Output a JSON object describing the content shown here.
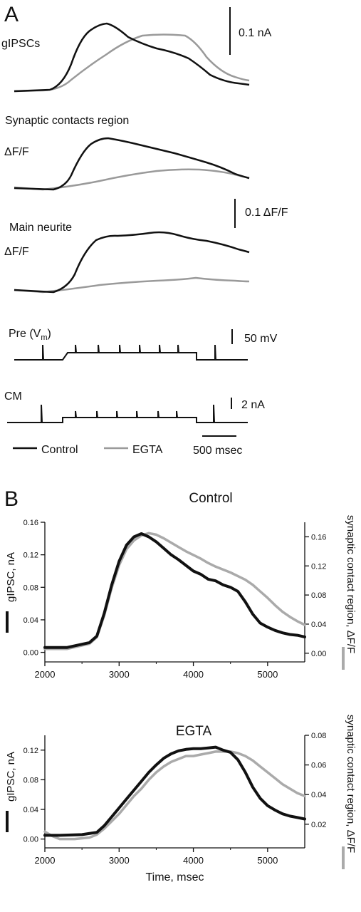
{
  "panel_a": {
    "letter": "A",
    "labels": {
      "gipsc": "gIPSCs",
      "synaptic": "Synaptic contacts region",
      "df_syn": "ΔF/F",
      "neurite": "Main neurite",
      "df_neurite": "ΔF/F",
      "pre": "Pre (V",
      "pre_sub": "m",
      "pre_close": ")",
      "cm": "CM"
    },
    "scalebars": {
      "current": "0.1 nA",
      "fluor": "0.1 ΔF/F",
      "voltage": "50 mV",
      "cm": "2 nA",
      "time": "500 msec"
    },
    "legend": {
      "control": "Control",
      "egta": "EGTA"
    },
    "colors": {
      "control": "#111111",
      "egta": "#9a9a9a"
    }
  },
  "panel_b": {
    "letter": "B"
  },
  "chart_data": [
    {
      "type": "line",
      "title": "Control",
      "xlabel": "",
      "ylabel_left": "gIPSC, nA",
      "ylabel_right": "synaptic contact region, ΔF/F",
      "xlim": [
        2000,
        5500
      ],
      "ylim_left": [
        -0.01,
        0.16
      ],
      "ylim_right": [
        -0.01,
        0.18
      ],
      "x_ticks": [
        2000,
        3000,
        4000,
        5000
      ],
      "y_ticks_left": [
        "0.00",
        "0.04",
        "0.08",
        "0.12",
        "0.16"
      ],
      "y_ticks_right": [
        "0.00",
        "0.04",
        "0.08",
        "0.12",
        "0.16"
      ],
      "series": [
        {
          "axis": "left",
          "color": "#111111",
          "x": [
            2000,
            2300,
            2600,
            2700,
            2800,
            2900,
            3000,
            3100,
            3200,
            3300,
            3400,
            3500,
            3600,
            3700,
            3800,
            3900,
            4000,
            4100,
            4200,
            4300,
            4400,
            4500,
            4600,
            4700,
            4800,
            4900,
            5000,
            5100,
            5200,
            5300,
            5400,
            5500
          ],
          "y": [
            0.006,
            0.006,
            0.012,
            0.02,
            0.048,
            0.083,
            0.112,
            0.132,
            0.142,
            0.146,
            0.142,
            0.136,
            0.128,
            0.12,
            0.114,
            0.107,
            0.1,
            0.096,
            0.09,
            0.088,
            0.083,
            0.08,
            0.075,
            0.062,
            0.047,
            0.036,
            0.031,
            0.027,
            0.024,
            0.022,
            0.021,
            0.019
          ]
        },
        {
          "axis": "right",
          "color": "#aaaaaa",
          "x": [
            2000,
            2300,
            2600,
            2700,
            2800,
            2900,
            3000,
            3100,
            3200,
            3300,
            3400,
            3500,
            3600,
            3700,
            3800,
            3900,
            4000,
            4100,
            4200,
            4300,
            4400,
            4500,
            4600,
            4700,
            4800,
            4900,
            5000,
            5100,
            5200,
            5300,
            5400,
            5500
          ],
          "y": [
            0.006,
            0.006,
            0.013,
            0.022,
            0.052,
            0.09,
            0.121,
            0.143,
            0.155,
            0.162,
            0.165,
            0.163,
            0.158,
            0.152,
            0.146,
            0.14,
            0.135,
            0.13,
            0.124,
            0.119,
            0.115,
            0.111,
            0.106,
            0.101,
            0.094,
            0.085,
            0.076,
            0.066,
            0.057,
            0.05,
            0.044,
            0.039
          ]
        }
      ]
    },
    {
      "type": "line",
      "title": "EGTA",
      "xlabel": "Time, msec",
      "ylabel_left": "gIPSC, nA",
      "ylabel_right": "synaptic contact region, ΔF/F",
      "xlim": [
        2000,
        5500
      ],
      "ylim_left": [
        -0.01,
        0.14
      ],
      "ylim_right": [
        0.005,
        0.08
      ],
      "x_ticks": [
        2000,
        3000,
        4000,
        5000
      ],
      "y_ticks_left": [
        "0.00",
        "0.04",
        "0.08",
        "0.12"
      ],
      "y_ticks_right": [
        "0.02",
        "0.04",
        "0.06",
        "0.08"
      ],
      "series": [
        {
          "axis": "left",
          "color": "#111111",
          "x": [
            2000,
            2200,
            2500,
            2700,
            2800,
            2900,
            3000,
            3100,
            3200,
            3300,
            3400,
            3500,
            3600,
            3700,
            3800,
            3900,
            4000,
            4100,
            4200,
            4300,
            4400,
            4500,
            4600,
            4700,
            4800,
            4900,
            5000,
            5100,
            5200,
            5300,
            5400,
            5500
          ],
          "y": [
            0.005,
            0.005,
            0.006,
            0.009,
            0.018,
            0.03,
            0.042,
            0.054,
            0.066,
            0.078,
            0.09,
            0.1,
            0.109,
            0.115,
            0.119,
            0.121,
            0.122,
            0.122,
            0.123,
            0.124,
            0.12,
            0.117,
            0.107,
            0.09,
            0.07,
            0.055,
            0.045,
            0.039,
            0.034,
            0.031,
            0.029,
            0.027
          ]
        },
        {
          "axis": "right",
          "color": "#aaaaaa",
          "x": [
            2000,
            2100,
            2200,
            2400,
            2600,
            2700,
            2800,
            2900,
            3000,
            3100,
            3200,
            3300,
            3400,
            3500,
            3600,
            3700,
            3800,
            3900,
            4000,
            4100,
            4200,
            4300,
            4400,
            4500,
            4600,
            4700,
            4800,
            4900,
            5000,
            5100,
            5200,
            5300,
            5400,
            5500
          ],
          "y": [
            0.015,
            0.012,
            0.01,
            0.01,
            0.011,
            0.013,
            0.017,
            0.022,
            0.027,
            0.033,
            0.039,
            0.044,
            0.05,
            0.055,
            0.059,
            0.062,
            0.064,
            0.066,
            0.066,
            0.067,
            0.068,
            0.069,
            0.069,
            0.069,
            0.068,
            0.066,
            0.063,
            0.059,
            0.055,
            0.051,
            0.047,
            0.044,
            0.041,
            0.039
          ]
        }
      ]
    }
  ]
}
